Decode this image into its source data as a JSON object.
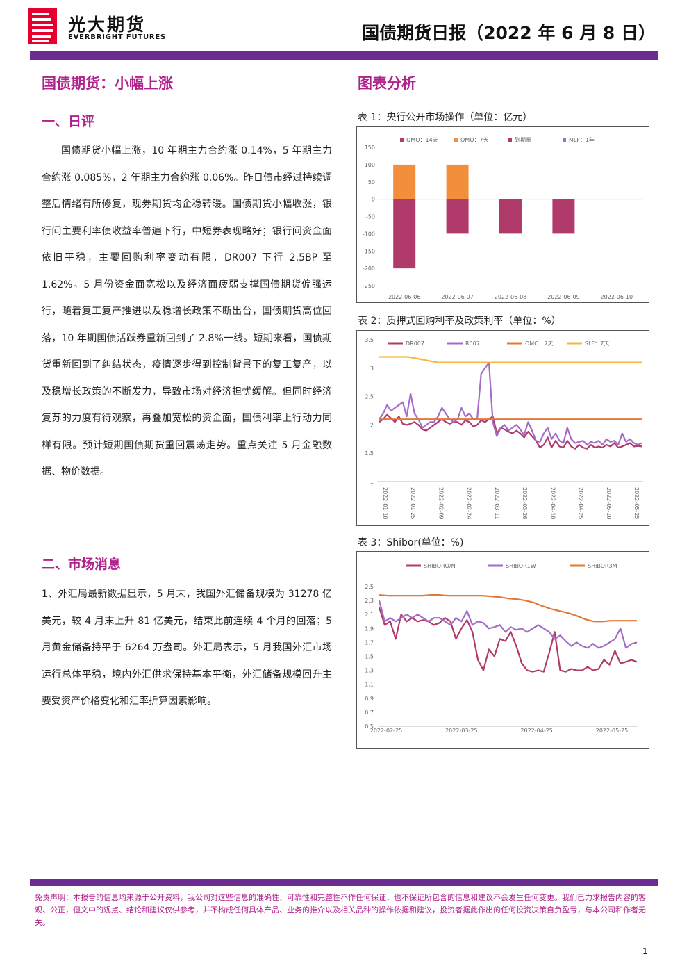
{
  "header": {
    "logo_cn": "光大期货",
    "logo_en": "EVERBRIGHT FUTURES",
    "report_title": "国债期货日报（2022 年 6 月 8 日）"
  },
  "left": {
    "title": "国债期货：小幅上涨",
    "section1": {
      "heading": "一、日评",
      "body": "国债期货小幅上涨，10 年期主力合约涨 0.14%，5 年期主力合约涨 0.085%，2 年期主力合约涨 0.06%。昨日债市经过持续调整后情绪有所修复，现券期货均企稳转暖。国债期货小幅收涨，银行间主要利率债收益率普遍下行，中短券表现略好；银行间资金面依旧平稳，主要回购利率变动有限，DR007 下行 2.5BP 至 1.62%。5 月份资金面宽松以及经济面疲弱支撑国债期货偏强运行，随着复工复产推进以及稳增长政策不断出台，国债期货高位回落，10 年期国债活跃券重新回到了 2.8%一线。短期来看，国债期货重新回到了纠结状态，疫情逐步得到控制背景下的复工复产，以及稳增长政策的不断发力，导致市场对经济担忧缓解。但同时经济复苏的力度有待观察，再叠加宽松的资金面，国债利率上行动力同样有限。预计短期国债期货重回震荡走势。重点关注 5 月金融数据、物价数据。"
    },
    "section2": {
      "heading": "二、市场消息",
      "body": "1、外汇局最新数据显示，5 月末，我国外汇储备规模为 31278 亿美元，较 4 月末上升 81 亿美元，结束此前连续 4 个月的回落；5 月黄金储备持平于 6264 万盎司。外汇局表示，5 月我国外汇市场运行总体平稳，境内外汇供求保持基本平衡，外汇储备规模回升主要受资产价格变化和汇率折算因素影响。"
    }
  },
  "right": {
    "title": "图表分析",
    "chart1_caption": "表 1：央行公开市场操作（单位：亿元）",
    "chart2_caption": "表 2：质押式回购利率及政策利率（单位：%）",
    "chart3_caption": "表 3：Shibor(单位：%)"
  },
  "chart_data": [
    {
      "type": "bar",
      "categories": [
        "2022-06-06",
        "2022-06-07",
        "2022-06-08",
        "2022-06-09",
        "2022-06-10"
      ],
      "series": [
        {
          "name": "OMO：14天",
          "color": "#b03a6a",
          "values": [
            0,
            0,
            0,
            0,
            0
          ]
        },
        {
          "name": "OMO：7天",
          "color": "#f28e3c",
          "values": [
            100,
            100,
            0,
            0,
            0
          ]
        },
        {
          "name": "到期量",
          "color": "#b03a6a",
          "values": [
            -200,
            -100,
            -100,
            -100,
            0
          ]
        },
        {
          "name": "MLF：1年",
          "color": "#a36cc9",
          "values": [
            0,
            0,
            0,
            0,
            0
          ]
        }
      ],
      "ylim": [
        -250,
        150
      ],
      "yticks": [
        150,
        100,
        50,
        0,
        -50,
        -100,
        -150,
        -200,
        -250
      ],
      "legend": "top"
    },
    {
      "type": "line",
      "x_ticks": [
        "2022-01-10",
        "2022-01-25",
        "2022-02-09",
        "2022-02-24",
        "2022-03-11",
        "2022-03-26",
        "2022-04-10",
        "2022-04-25",
        "2022-05-10",
        "2022-05-25"
      ],
      "ylim": [
        1,
        3.5
      ],
      "yticks": [
        3.5,
        3,
        2.5,
        2,
        1.5,
        1
      ],
      "legend": "top",
      "series": [
        {
          "name": "DR007",
          "color": "#b03a6a",
          "values": [
            2.05,
            2.1,
            2.18,
            2.12,
            2.05,
            2.15,
            2.02,
            2.0,
            2.02,
            2.05,
            2.0,
            1.92,
            1.9,
            1.95,
            2.0,
            2.05,
            2.1,
            2.05,
            2.02,
            2.05,
            2.05,
            2.0,
            2.08,
            2.05,
            1.97,
            2.0,
            2.08,
            2.05,
            2.1,
            2.15,
            1.85,
            1.95,
            1.92,
            1.88,
            1.85,
            1.9,
            1.85,
            1.78,
            1.88,
            1.8,
            1.72,
            1.6,
            1.65,
            1.78,
            1.6,
            1.72,
            1.62,
            1.6,
            1.72,
            1.62,
            1.58,
            1.65,
            1.6,
            1.58,
            1.65,
            1.6,
            1.62,
            1.6,
            1.65,
            1.62,
            1.68,
            1.6,
            1.62,
            1.65,
            1.68,
            1.62,
            1.63,
            1.62
          ]
        },
        {
          "name": "R007",
          "color": "#a36cc9",
          "values": [
            2.1,
            2.2,
            2.35,
            2.25,
            2.3,
            2.35,
            2.4,
            2.15,
            2.55,
            2.2,
            2.1,
            1.95,
            2.0,
            2.05,
            2.05,
            2.15,
            2.3,
            2.2,
            2.1,
            2.05,
            2.1,
            2.3,
            2.15,
            2.2,
            2.1,
            2.1,
            2.9,
            3.0,
            3.1,
            2.05,
            1.8,
            1.95,
            2.0,
            1.9,
            1.95,
            2.0,
            1.92,
            1.82,
            2.05,
            1.9,
            1.72,
            1.7,
            1.85,
            1.95,
            1.75,
            1.85,
            1.72,
            1.68,
            1.95,
            1.75,
            1.68,
            1.7,
            1.72,
            1.65,
            1.7,
            1.68,
            1.72,
            1.65,
            1.75,
            1.7,
            1.72,
            1.65,
            1.85,
            1.7,
            1.75,
            1.68,
            1.65,
            1.68
          ]
        },
        {
          "name": "OMO：7天",
          "color": "#e2793a",
          "values": [
            2.1,
            2.1,
            2.1,
            2.1,
            2.1,
            2.1,
            2.1,
            2.1,
            2.1,
            2.1
          ]
        },
        {
          "name": "SLF：7天",
          "color": "#f6b73c",
          "values": [
            3.2,
            3.2,
            3.1,
            3.1,
            3.1,
            3.1,
            3.1,
            3.1,
            3.1,
            3.1
          ]
        }
      ]
    },
    {
      "type": "line",
      "x_ticks": [
        "2022-02-25",
        "2022-03-25",
        "2022-04-25",
        "2022-05-25"
      ],
      "ylim": [
        0.5,
        2.5
      ],
      "yticks": [
        2.5,
        2.3,
        2.1,
        1.9,
        1.7,
        1.5,
        1.3,
        1.1,
        0.9,
        0.7,
        0.5
      ],
      "legend": "top",
      "series": [
        {
          "name": "SHIBORO/N",
          "color": "#b03a6a",
          "values": [
            2.2,
            1.95,
            2.0,
            1.75,
            2.1,
            2.0,
            2.05,
            2.0,
            2.02,
            2.0,
            1.95,
            1.98,
            2.05,
            2.0,
            1.75,
            1.9,
            2.02,
            1.85,
            1.45,
            1.3,
            1.6,
            1.5,
            1.75,
            1.72,
            1.85,
            1.65,
            1.4,
            1.3,
            1.28,
            1.3,
            1.28,
            1.55,
            1.85,
            1.3,
            1.28,
            1.32,
            1.3,
            1.3,
            1.35,
            1.3,
            1.32,
            1.45,
            1.38,
            1.58,
            1.4,
            1.42,
            1.45,
            1.42
          ]
        },
        {
          "name": "SHIBOR1W",
          "color": "#a36cc9",
          "values": [
            2.3,
            2.0,
            2.05,
            2.0,
            2.05,
            2.1,
            2.05,
            2.1,
            2.05,
            2.0,
            2.05,
            2.05,
            2.0,
            1.95,
            2.05,
            2.0,
            2.15,
            1.95,
            2.0,
            1.98,
            1.9,
            1.92,
            1.95,
            1.85,
            1.92,
            1.88,
            1.9,
            1.85,
            1.9,
            1.95,
            1.9,
            1.85,
            1.75,
            1.8,
            1.72,
            1.65,
            1.7,
            1.65,
            1.62,
            1.68,
            1.62,
            1.65,
            1.7,
            1.75,
            1.9,
            1.62,
            1.68,
            1.7
          ]
        },
        {
          "name": "SHiBOR3M",
          "color": "#e2793a",
          "values": [
            2.38,
            2.37,
            2.37,
            2.37,
            2.37,
            2.37,
            2.38,
            2.38,
            2.37,
            2.37,
            2.37,
            2.37,
            2.37,
            2.36,
            2.35,
            2.33,
            2.32,
            2.3,
            2.27,
            2.22,
            2.18,
            2.15,
            2.12,
            2.08,
            2.03,
            2.0,
            2.0,
            2.01,
            2.01,
            2.01,
            2.01
          ]
        }
      ]
    }
  ],
  "footer": {
    "disclaimer": "免责声明：本报告的信息均来源于公开资料，我公司对这些信息的准确性、可靠性和完整性不作任何保证，也不保证所包含的信息和建议不会发生任何变更。我们已力求报告内容的客观、公正，但文中的观点、结论和建议仅供参考，并不构成任何具体产品、业务的推介以及相关品种的操作依据和建议，投资者据此作出的任何投资决策自负盈亏，与本公司和作者无关。",
    "page_number": "1"
  }
}
